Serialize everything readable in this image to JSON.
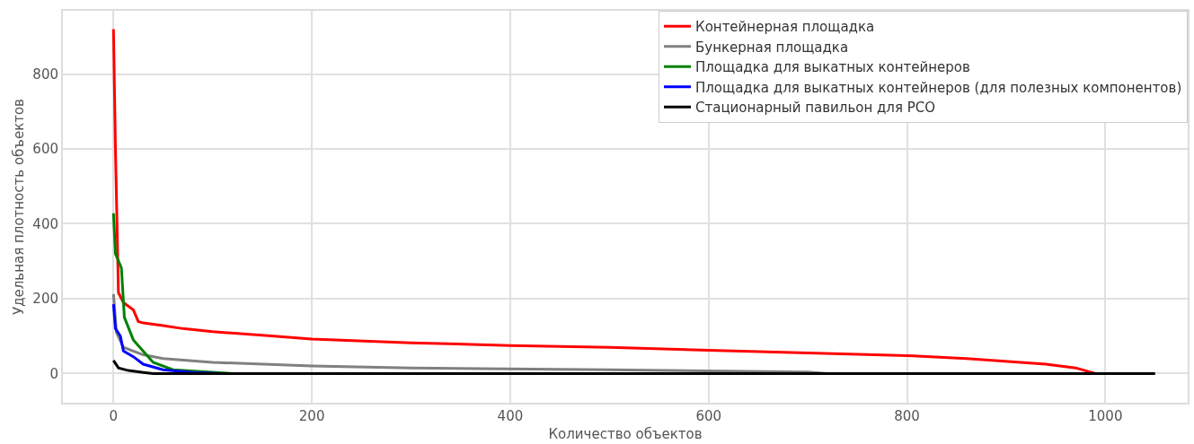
{
  "chart_data": {
    "type": "line",
    "xlabel": "Количество объектов",
    "ylabel": "Удельная плотность объектов",
    "xlim": [
      -51,
      1083
    ],
    "xticks": [
      0,
      200,
      400,
      600,
      800,
      1000
    ],
    "ylim": [
      -78,
      969
    ],
    "yticks": [
      0,
      200,
      400,
      600,
      800
    ],
    "grid": true,
    "legend": "top right",
    "series": [
      {
        "name": "Контейнерная площадка",
        "color": "#ff0000",
        "x": [
          0,
          2,
          5,
          10,
          20,
          25,
          30,
          50,
          70,
          100,
          150,
          200,
          300,
          400,
          500,
          600,
          700,
          800,
          860,
          940,
          970,
          990,
          1050
        ],
        "values": [
          920,
          600,
          216,
          190,
          170,
          139,
          135,
          128,
          120,
          112,
          102,
          92,
          82,
          75,
          70,
          62,
          55,
          48,
          40,
          25,
          15,
          0,
          0
        ]
      },
      {
        "name": "Бункерная площадка",
        "color": "#808080",
        "x": [
          0,
          3,
          10,
          30,
          50,
          100,
          200,
          300,
          500,
          700,
          720,
          1050
        ],
        "values": [
          212,
          110,
          70,
          50,
          40,
          30,
          20,
          15,
          10,
          4,
          0,
          0
        ]
      },
      {
        "name": "Площадка для выкатных контейнеров",
        "color": "#008000",
        "x": [
          0,
          2,
          8,
          11,
          20,
          30,
          40,
          60,
          120
        ],
        "values": [
          428,
          320,
          282,
          150,
          90,
          60,
          30,
          10,
          0
        ]
      },
      {
        "name": "Площадка для выкатных контейнеров (для полезных компонентов)",
        "color": "#0000ff",
        "x": [
          0,
          2,
          7,
          10,
          20,
          30,
          50,
          80,
          110
        ],
        "values": [
          185,
          120,
          100,
          60,
          45,
          25,
          10,
          3,
          0
        ]
      },
      {
        "name": "Стационарный павильон для РСО",
        "color": "#000000",
        "x": [
          0,
          5,
          15,
          30,
          40,
          1050
        ],
        "values": [
          35,
          15,
          8,
          3,
          0,
          0
        ]
      }
    ]
  }
}
